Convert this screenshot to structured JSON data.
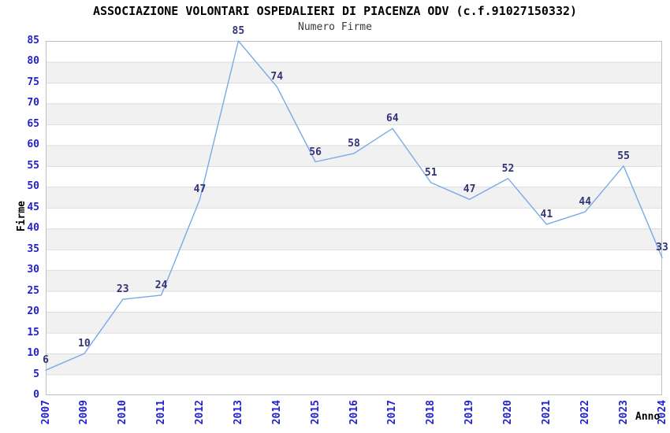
{
  "header": {
    "title": "ASSOCIAZIONE VOLONTARI OSPEDALIERI DI PIACENZA ODV (c.f.91027150332)",
    "subtitle": "Numero Firme"
  },
  "chart_data": {
    "type": "line",
    "title": "ASSOCIAZIONE VOLONTARI OSPEDALIERI DI PIACENZA ODV (c.f.91027150332)",
    "subtitle": "Numero Firme",
    "xlabel": "Anno",
    "ylabel": "Firme",
    "categories": [
      "2007",
      "2009",
      "2010",
      "2011",
      "2012",
      "2013",
      "2014",
      "2015",
      "2016",
      "2017",
      "2018",
      "2019",
      "2020",
      "2021",
      "2022",
      "2023",
      "2024"
    ],
    "values": [
      6,
      10,
      23,
      24,
      47,
      85,
      74,
      56,
      58,
      64,
      51,
      47,
      52,
      41,
      44,
      55,
      33
    ],
    "point_labels_visible": true,
    "ylim": [
      0,
      85
    ],
    "y_tick_step": 5,
    "grid": "horizontal",
    "band_fill": "alternating",
    "legend": "none",
    "colors": {
      "line": "#7aa9e8",
      "tick_label": "#2222cc",
      "point_label": "#333377",
      "band": "#f1f1f1",
      "grid_line": "#dcdcdc",
      "plot_border": "#c0c0c0",
      "title": "#000000",
      "subtitle": "#3a3a3a",
      "axis_title": "#000000",
      "background": "#ffffff"
    }
  }
}
